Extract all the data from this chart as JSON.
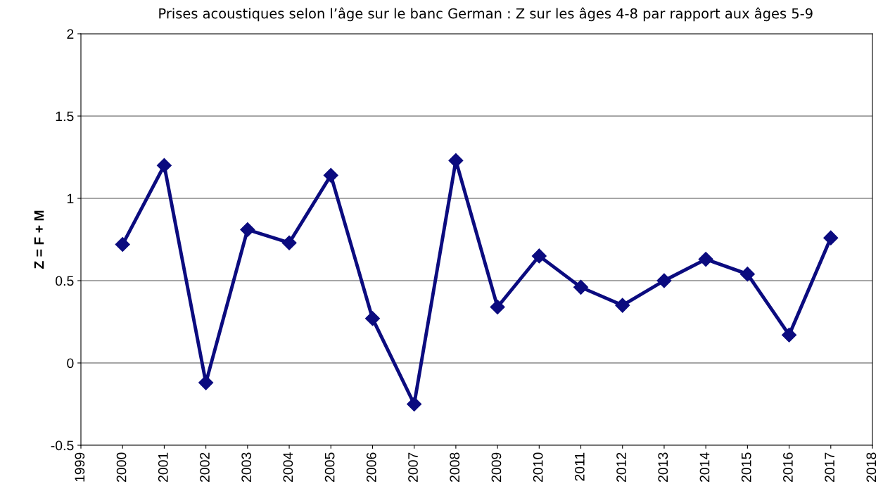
{
  "chart_data": {
    "type": "line",
    "title": "Prises acoustiques selon l’âge sur le banc German : Z sur les âges 4-8 par rapport aux âges 5-9",
    "ylabel": "Z = F + M",
    "x": [
      2000,
      2001,
      2002,
      2003,
      2004,
      2005,
      2006,
      2007,
      2008,
      2009,
      2010,
      2011,
      2012,
      2013,
      2014,
      2015,
      2016,
      2017
    ],
    "series": [
      {
        "color": "#0b0b7f",
        "values": [
          0.72,
          1.2,
          -0.12,
          0.81,
          0.73,
          1.14,
          0.27,
          -0.25,
          1.23,
          0.34,
          0.65,
          0.46,
          0.35,
          0.5,
          0.63,
          0.54,
          0.17,
          0.76
        ]
      }
    ],
    "xlim": [
      1999,
      2018
    ],
    "xticks": [
      1999,
      2000,
      2001,
      2002,
      2003,
      2004,
      2005,
      2006,
      2007,
      2008,
      2009,
      2010,
      2011,
      2012,
      2013,
      2014,
      2015,
      2016,
      2017,
      2018
    ],
    "ylim": [
      -0.5,
      2
    ],
    "yticks": [
      -0.5,
      0,
      0.5,
      1,
      1.5,
      2
    ],
    "grid": "y",
    "marker": "diamond",
    "line_style": "solid"
  }
}
